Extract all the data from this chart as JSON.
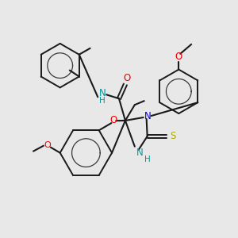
{
  "background_color": "#e8e8e8",
  "bond_color": "#1a1a1a",
  "N_color": "#0000dd",
  "O_color": "#ee0000",
  "S_color": "#aaaa00",
  "NH_color": "#009999",
  "figsize": [
    3.0,
    3.0
  ],
  "dpi": 100,
  "xlim": [
    0,
    300
  ],
  "ylim": [
    0,
    300
  ]
}
